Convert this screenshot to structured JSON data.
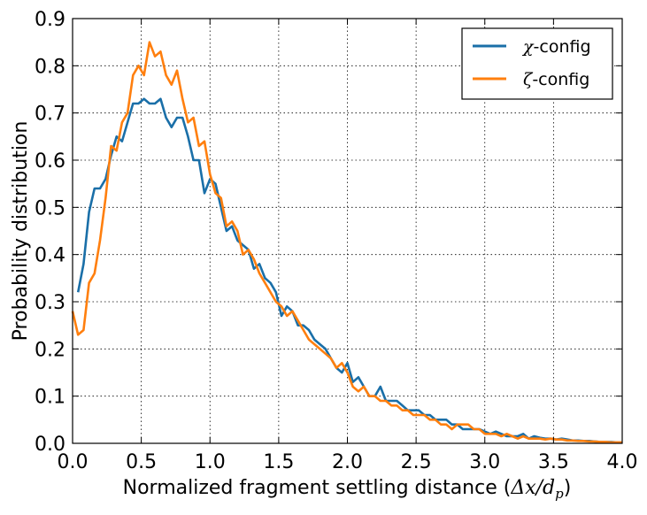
{
  "chart_data": {
    "type": "line",
    "xlabel_text": "Normalized fragment settling distance (",
    "xlabel_math": "Δx/d",
    "xlabel_sub": "p",
    "xlabel_close": ")",
    "ylabel": "Probability distribution",
    "xlim": [
      0.0,
      4.0
    ],
    "ylim": [
      0.0,
      0.9
    ],
    "xticks": [
      "0.0",
      "0.5",
      "1.0",
      "1.5",
      "2.0",
      "2.5",
      "3.0",
      "3.5",
      "4.0"
    ],
    "yticks": [
      "0.0",
      "0.1",
      "0.2",
      "0.3",
      "0.4",
      "0.5",
      "0.6",
      "0.7",
      "0.8",
      "0.9"
    ],
    "grid": true,
    "legend_position": "top-right",
    "series": [
      {
        "name_symbol": "χ",
        "name_text": "-config",
        "color": "#1a6fa8",
        "x": [
          0.04,
          0.08,
          0.12,
          0.16,
          0.2,
          0.24,
          0.28,
          0.32,
          0.36,
          0.4,
          0.44,
          0.48,
          0.52,
          0.56,
          0.6,
          0.64,
          0.68,
          0.72,
          0.76,
          0.8,
          0.84,
          0.88,
          0.92,
          0.96,
          1.0,
          1.04,
          1.08,
          1.12,
          1.16,
          1.2,
          1.24,
          1.28,
          1.32,
          1.36,
          1.4,
          1.44,
          1.48,
          1.52,
          1.56,
          1.6,
          1.64,
          1.68,
          1.72,
          1.76,
          1.8,
          1.84,
          1.88,
          1.92,
          1.96,
          2.0,
          2.04,
          2.08,
          2.12,
          2.16,
          2.2,
          2.24,
          2.28,
          2.32,
          2.36,
          2.4,
          2.44,
          2.48,
          2.52,
          2.56,
          2.6,
          2.64,
          2.68,
          2.72,
          2.76,
          2.8,
          2.84,
          2.88,
          2.92,
          2.96,
          3.0,
          3.04,
          3.08,
          3.12,
          3.16,
          3.2,
          3.24,
          3.28,
          3.32,
          3.36,
          3.4,
          3.44,
          3.48,
          3.52,
          3.56,
          3.6,
          3.64,
          3.68,
          3.72,
          3.76,
          3.8,
          3.84,
          3.88,
          3.92,
          3.96,
          4.0
        ],
        "y": [
          0.32,
          0.38,
          0.49,
          0.54,
          0.54,
          0.56,
          0.61,
          0.65,
          0.64,
          0.68,
          0.72,
          0.72,
          0.73,
          0.72,
          0.72,
          0.73,
          0.69,
          0.67,
          0.69,
          0.69,
          0.65,
          0.6,
          0.6,
          0.53,
          0.56,
          0.55,
          0.5,
          0.45,
          0.46,
          0.43,
          0.42,
          0.41,
          0.37,
          0.38,
          0.35,
          0.34,
          0.32,
          0.27,
          0.29,
          0.28,
          0.25,
          0.25,
          0.24,
          0.22,
          0.21,
          0.2,
          0.18,
          0.16,
          0.15,
          0.17,
          0.13,
          0.14,
          0.12,
          0.1,
          0.1,
          0.12,
          0.09,
          0.09,
          0.09,
          0.08,
          0.07,
          0.07,
          0.07,
          0.06,
          0.06,
          0.05,
          0.05,
          0.05,
          0.04,
          0.04,
          0.03,
          0.03,
          0.03,
          0.03,
          0.025,
          0.02,
          0.025,
          0.02,
          0.015,
          0.015,
          0.015,
          0.02,
          0.01,
          0.015,
          0.012,
          0.01,
          0.01,
          0.008,
          0.01,
          0.008,
          0.006,
          0.006,
          0.005,
          0.005,
          0.004,
          0.003,
          0.003,
          0.003,
          0.002,
          0.002
        ]
      },
      {
        "name_symbol": "ζ",
        "name_text": "-config",
        "color": "#ff7f0e",
        "x": [
          0.0,
          0.04,
          0.08,
          0.12,
          0.16,
          0.2,
          0.24,
          0.28,
          0.32,
          0.36,
          0.4,
          0.44,
          0.48,
          0.52,
          0.56,
          0.6,
          0.64,
          0.68,
          0.72,
          0.76,
          0.8,
          0.84,
          0.88,
          0.92,
          0.96,
          1.0,
          1.04,
          1.08,
          1.12,
          1.16,
          1.2,
          1.24,
          1.28,
          1.32,
          1.36,
          1.4,
          1.44,
          1.48,
          1.52,
          1.56,
          1.6,
          1.64,
          1.68,
          1.72,
          1.76,
          1.8,
          1.84,
          1.88,
          1.92,
          1.96,
          2.0,
          2.04,
          2.08,
          2.12,
          2.16,
          2.2,
          2.24,
          2.28,
          2.32,
          2.36,
          2.4,
          2.44,
          2.48,
          2.52,
          2.56,
          2.6,
          2.64,
          2.68,
          2.72,
          2.76,
          2.8,
          2.84,
          2.88,
          2.92,
          2.96,
          3.0,
          3.04,
          3.08,
          3.12,
          3.16,
          3.2,
          3.24,
          3.28,
          3.32,
          3.36,
          3.4,
          3.44,
          3.48,
          3.52,
          3.56,
          3.6,
          3.64,
          3.68,
          3.72,
          3.76,
          3.8,
          3.84,
          3.88,
          3.92,
          3.96,
          4.0
        ],
        "y": [
          0.28,
          0.23,
          0.24,
          0.34,
          0.36,
          0.43,
          0.52,
          0.63,
          0.62,
          0.68,
          0.7,
          0.78,
          0.8,
          0.78,
          0.85,
          0.82,
          0.83,
          0.78,
          0.76,
          0.79,
          0.73,
          0.68,
          0.69,
          0.63,
          0.64,
          0.57,
          0.53,
          0.52,
          0.46,
          0.47,
          0.45,
          0.4,
          0.41,
          0.39,
          0.36,
          0.34,
          0.32,
          0.3,
          0.29,
          0.27,
          0.28,
          0.26,
          0.24,
          0.22,
          0.21,
          0.2,
          0.19,
          0.18,
          0.16,
          0.17,
          0.15,
          0.12,
          0.11,
          0.12,
          0.1,
          0.1,
          0.09,
          0.09,
          0.08,
          0.08,
          0.07,
          0.07,
          0.06,
          0.06,
          0.06,
          0.05,
          0.05,
          0.04,
          0.04,
          0.03,
          0.04,
          0.04,
          0.04,
          0.03,
          0.03,
          0.02,
          0.02,
          0.02,
          0.015,
          0.02,
          0.015,
          0.01,
          0.015,
          0.01,
          0.01,
          0.01,
          0.008,
          0.01,
          0.008,
          0.008,
          0.006,
          0.006,
          0.005,
          0.005,
          0.004,
          0.004,
          0.003,
          0.003,
          0.002,
          0.002,
          0.002
        ]
      }
    ]
  }
}
